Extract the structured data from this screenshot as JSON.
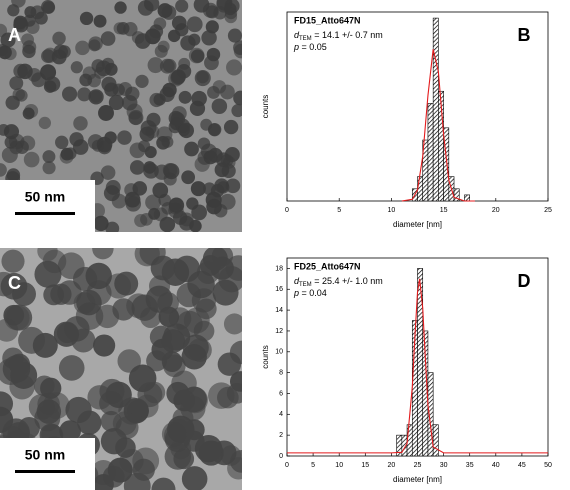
{
  "images": [
    {
      "label": "A",
      "scale_bar": "50 nm"
    },
    {
      "label": "C",
      "scale_bar": "50 nm"
    }
  ],
  "chart_data": [
    {
      "type": "histogram",
      "panel_label": "B",
      "annotation": {
        "sample": "FD15_Atto647N",
        "d_symbol": "d",
        "d_subscript": "TEM",
        "d_text": " = 14.1 +/- 0.7 nm",
        "p_symbol": "p",
        "p_text": " = 0.05"
      },
      "xlabel": "diameter [nm]",
      "ylabel": "counts",
      "bins": [
        12,
        12.5,
        13,
        13.5,
        14,
        14.5,
        15,
        15.5,
        16,
        16.5,
        17,
        17.5
      ],
      "values": [
        2,
        4,
        10,
        16,
        30,
        18,
        12,
        4,
        2,
        0,
        1
      ],
      "bar_color": "#000000",
      "xlim": [
        0,
        25
      ],
      "xticks": [
        0,
        5,
        10,
        15,
        20,
        25
      ],
      "ylim": [
        0,
        31
      ],
      "fit": {
        "color": "#e41a1c",
        "x": [
          11,
          12,
          12.5,
          13,
          13.5,
          14,
          14.5,
          15,
          15.5,
          16,
          17,
          18
        ],
        "values": [
          0,
          0.28,
          1.8,
          7.3,
          17.3,
          24.9,
          21.2,
          10.9,
          3.4,
          0.6,
          0,
          0
        ]
      }
    },
    {
      "type": "histogram",
      "panel_label": "D",
      "annotation": {
        "sample": "FD25_Atto647N",
        "d_symbol": "d",
        "d_subscript": "TEM",
        "d_text": " = 25.4 +/- 1.0 nm",
        "p_symbol": "p",
        "p_text": " = 0.04"
      },
      "xlabel": "diameter [nm]",
      "ylabel": "counts",
      "bins": [
        21,
        22,
        23,
        24,
        25,
        26,
        27,
        28,
        29
      ],
      "values": [
        2,
        2,
        3,
        13,
        18,
        12,
        8,
        3
      ],
      "bar_color": "#000000",
      "xlim": [
        0,
        50
      ],
      "xticks": [
        0,
        5,
        10,
        15,
        20,
        25,
        30,
        35,
        40,
        45,
        50
      ],
      "ylim": [
        0,
        19
      ],
      "yticks": [
        0,
        2,
        4,
        6,
        8,
        10,
        12,
        14,
        16,
        18
      ],
      "fit": {
        "color": "#e41a1c",
        "x": [
          0,
          20,
          22,
          23,
          24,
          24.5,
          25,
          25.4,
          26,
          26.5,
          27,
          28,
          30,
          50
        ],
        "values": [
          0.3,
          0.3,
          0.35,
          1.2,
          6.6,
          11.4,
          15.7,
          17,
          14.2,
          9.4,
          4.9,
          0.87,
          0.3,
          0.3
        ]
      }
    }
  ]
}
